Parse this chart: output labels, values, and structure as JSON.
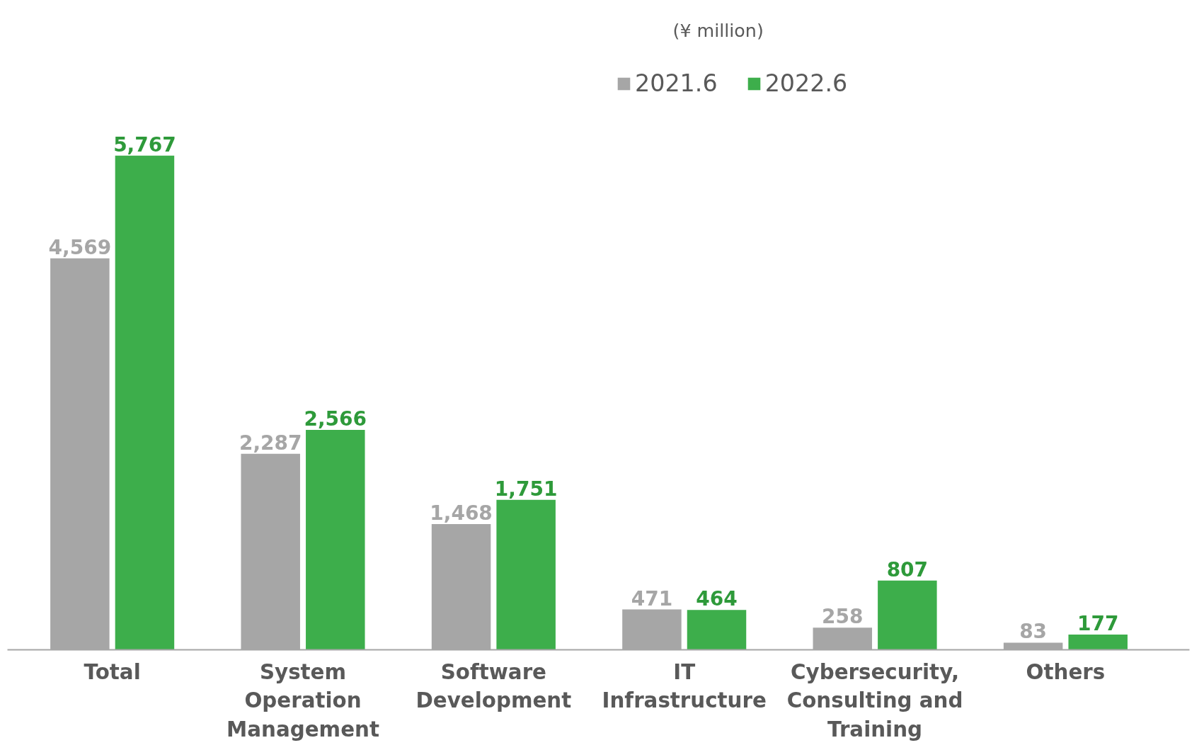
{
  "chart_data": {
    "type": "bar",
    "categories": [
      "Total",
      "System Operation Management",
      "Software Development",
      "IT Infrastructure",
      "Cybersecurity, Consulting and Training",
      "Others"
    ],
    "series": [
      {
        "name": "2021.6",
        "color": "#a6a6a6",
        "values": [
          4569,
          2287,
          1468,
          471,
          258,
          83
        ],
        "value_labels": [
          "4,569",
          "2,287",
          "1,468",
          "471",
          "258",
          "83"
        ]
      },
      {
        "name": "2022.6",
        "color": "#3dae4b",
        "values": [
          5767,
          2566,
          1751,
          464,
          807,
          177
        ],
        "value_labels": [
          "5,767",
          "2,566",
          "1,751",
          "464",
          "807",
          "177"
        ]
      }
    ],
    "legend": "top right",
    "grid": false,
    "annotations": [
      "(¥ million)"
    ]
  }
}
